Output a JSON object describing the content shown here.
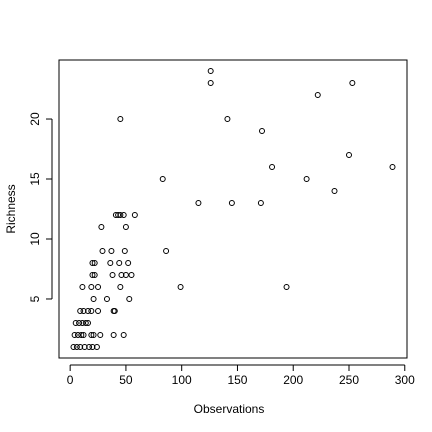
{
  "chart_data": {
    "type": "scatter",
    "x_label": "Observations",
    "y_label": "Richness",
    "x": [
      126,
      126,
      253,
      222,
      45,
      141,
      172,
      181,
      289,
      250,
      83,
      212,
      237,
      115,
      145,
      171,
      45,
      41,
      43,
      48,
      58,
      28,
      50,
      29,
      37,
      49,
      86,
      20,
      22,
      36,
      44,
      52,
      20,
      22,
      38,
      46,
      50,
      55,
      11,
      19,
      25,
      45,
      99,
      194,
      21,
      33,
      53,
      9,
      12,
      16,
      19,
      25,
      39,
      40,
      5,
      8,
      11,
      14,
      16,
      4,
      7,
      10,
      12,
      19,
      21,
      27,
      39,
      48,
      3,
      6,
      9,
      13,
      17,
      20,
      24
    ],
    "values": [
      24,
      23,
      23,
      22,
      20,
      20,
      19,
      16,
      16,
      17,
      15,
      15,
      14,
      13,
      13,
      13,
      12,
      12,
      12,
      12,
      12,
      11,
      11,
      9,
      9,
      9,
      9,
      8,
      8,
      8,
      8,
      8,
      7,
      7,
      7,
      7,
      7,
      7,
      6,
      6,
      6,
      6,
      6,
      6,
      5,
      5,
      5,
      4,
      4,
      4,
      4,
      4,
      4,
      4,
      3,
      3,
      3,
      3,
      3,
      2,
      2,
      2,
      2,
      2,
      2,
      2,
      2,
      2,
      1,
      1,
      1,
      1,
      1,
      1,
      1
    ],
    "color": "#000000",
    "xlim": [
      -10,
      302
    ],
    "ylim": [
      0.08,
      24.92
    ],
    "xticks": [
      0,
      50,
      100,
      150,
      200,
      250,
      300
    ],
    "yticks": [
      5,
      10,
      15,
      20
    ]
  }
}
